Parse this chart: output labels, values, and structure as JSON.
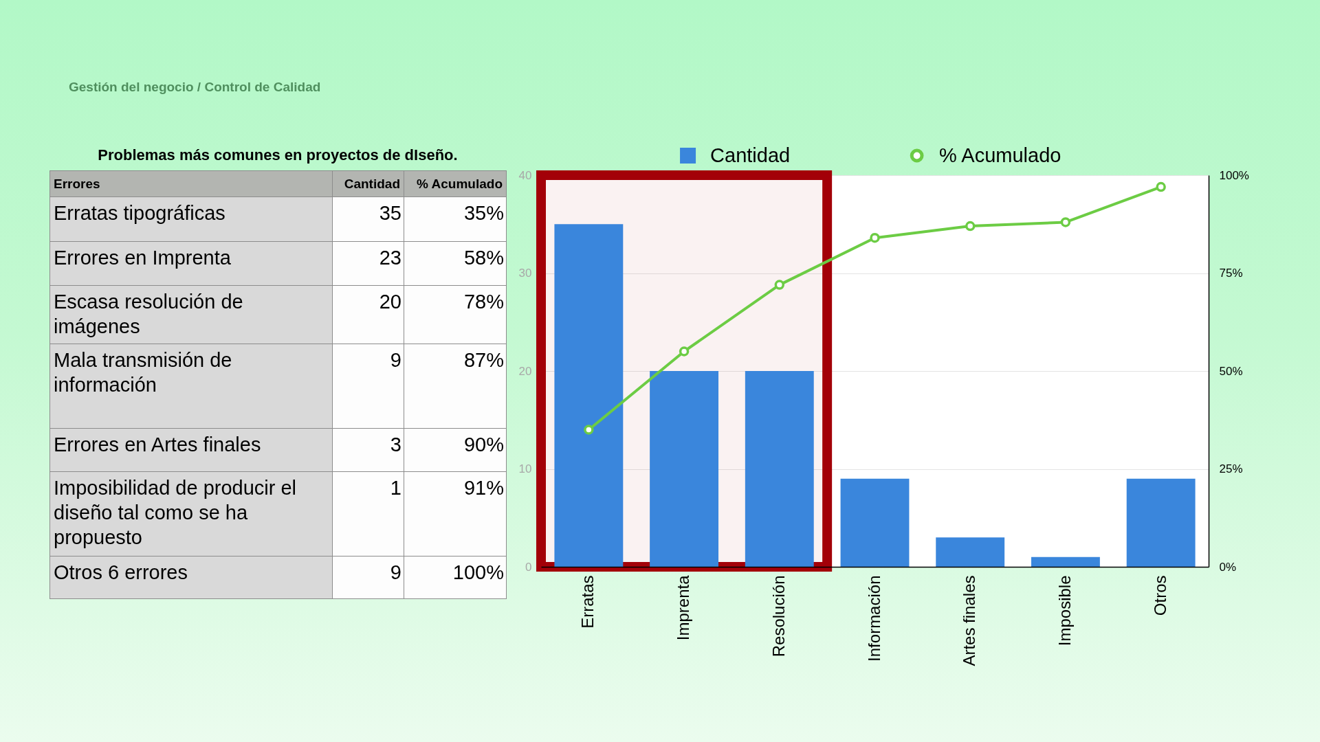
{
  "chart_data": [
    {
      "type": "other",
      "title": "Problemas más comunes en proyectos de dIseño.",
      "ylabel": "Errores",
      "annotations": [
        "Gestión del negocio / Control de Calidad"
      ],
      "categories": [
        "Erratas tipográficas",
        "Errores en Imprenta",
        "Escasa resolución de imágenes",
        "Mala transmisión de información",
        "Errores en Artes finales",
        "Imposibilidad de producir el diseño tal como se ha propuesto",
        "Otros 6 errores"
      ],
      "series": [
        {
          "name": "Cantidad",
          "values": [
            35,
            23,
            20,
            9,
            3,
            1,
            9
          ]
        },
        {
          "name": "% Acumulado",
          "values": [
            35,
            58,
            78,
            87,
            90,
            91,
            100
          ],
          "value_labels": [
            "35%",
            "58%",
            "78%",
            "87%",
            "90%",
            "91%",
            "100%"
          ]
        }
      ],
      "data_labels": true
    },
    {
      "type": "bar",
      "categories": [
        "Erratas",
        "Imprenta",
        "Resolución",
        "Información",
        "Artes finales",
        "Imposible",
        "Otros"
      ],
      "series": [
        {
          "name": "Cantidad",
          "color": "#3a86dc",
          "values": [
            35,
            20,
            20,
            9,
            3,
            1,
            9
          ]
        },
        {
          "name": "% Acumulado",
          "type": "line",
          "axis": "y2",
          "color": "#6ccc44",
          "values": [
            35,
            55,
            72,
            84,
            87,
            88,
            97
          ]
        }
      ],
      "ylim": [
        0,
        40
      ],
      "yticks": [
        0,
        10,
        20,
        30,
        40
      ],
      "y2lim": [
        0,
        100
      ],
      "y2ticks": [
        {
          "value": 0,
          "label": "0%"
        },
        {
          "value": 25,
          "label": "25%"
        },
        {
          "value": 50,
          "label": "50%"
        },
        {
          "value": 75,
          "label": "75%"
        },
        {
          "value": 100,
          "label": "100%"
        }
      ],
      "grid": "y",
      "legend": "top",
      "marker": "circle",
      "bands": [
        {
          "axis": "x",
          "from": "Erratas",
          "to": "Resolución",
          "color": "#a30008"
        }
      ]
    }
  ]
}
